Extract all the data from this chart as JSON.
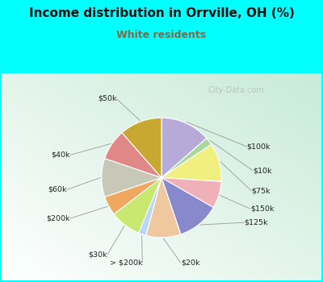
{
  "title": "Income distribution in Orrville, OH (%)",
  "subtitle": "White residents",
  "bg_color": "#00ffff",
  "chart_bg": "#d8efe0",
  "labels_cw_from_top": [
    "$100k",
    "$10k",
    "$75k",
    "$150k",
    "$125k",
    "$20k",
    "> $200k",
    "$30k",
    "$200k",
    "$60k",
    "$40k",
    "$50k"
  ],
  "values_cw_from_top": [
    13,
    2,
    10,
    7,
    11,
    9,
    2,
    8,
    5,
    10,
    8,
    11
  ],
  "colors_cw_from_top": [
    "#b8aad8",
    "#a8d8a0",
    "#f0f080",
    "#f0b0b8",
    "#8888cc",
    "#f0c8a0",
    "#b8d8f8",
    "#c8e870",
    "#f0a860",
    "#c8c8b8",
    "#e08888",
    "#c8a830"
  ],
  "subtitle_color": "#886644",
  "title_fontsize": 11,
  "subtitle_fontsize": 9,
  "watermark": "City-Data.com",
  "startangle": 90
}
